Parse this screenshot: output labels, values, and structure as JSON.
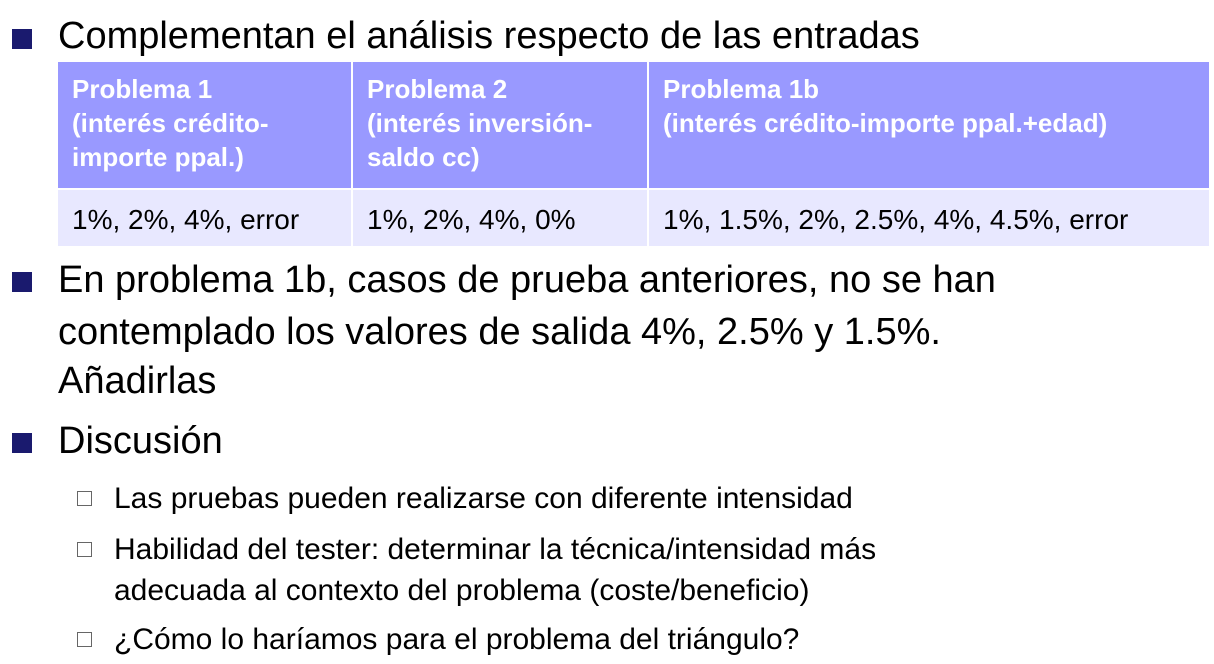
{
  "bullets": {
    "b1": "Complementan el análisis respecto de las entradas",
    "b2_line1": "En problema 1b, casos de prueba anteriores, no se han",
    "b2_line2": "contemplado los valores de salida 4%, 2.5% y 1.5%.",
    "b2_line3": "Añadirlas",
    "b3": "Discusión"
  },
  "table": {
    "headers": [
      [
        "Problema 1",
        "(interés crédito-",
        "importe ppal.)"
      ],
      [
        "Problema 2",
        "(interés inversión-",
        "saldo cc)"
      ],
      [
        "Problema 1b",
        "(interés crédito-importe ppal.+edad)"
      ]
    ],
    "row": [
      "1%, 2%, 4%, error",
      "1%, 2%, 4%, 0%",
      "1%, 1.5%, 2%, 2.5%, 4%, 4.5%, error"
    ]
  },
  "sub_bullets": {
    "s1": "Las pruebas pueden realizarse con diferente intensidad",
    "s2_line1": "Habilidad del tester: determinar la técnica/intensidad más",
    "s2_line2": "adecuada al contexto del problema (coste/beneficio)",
    "s3": "¿Cómo lo haríamos para el problema del triángulo?"
  },
  "colors": {
    "bullet": "#1a1a6e",
    "header_bg": "#9999ff",
    "cell_bg": "#e8e8ff"
  }
}
